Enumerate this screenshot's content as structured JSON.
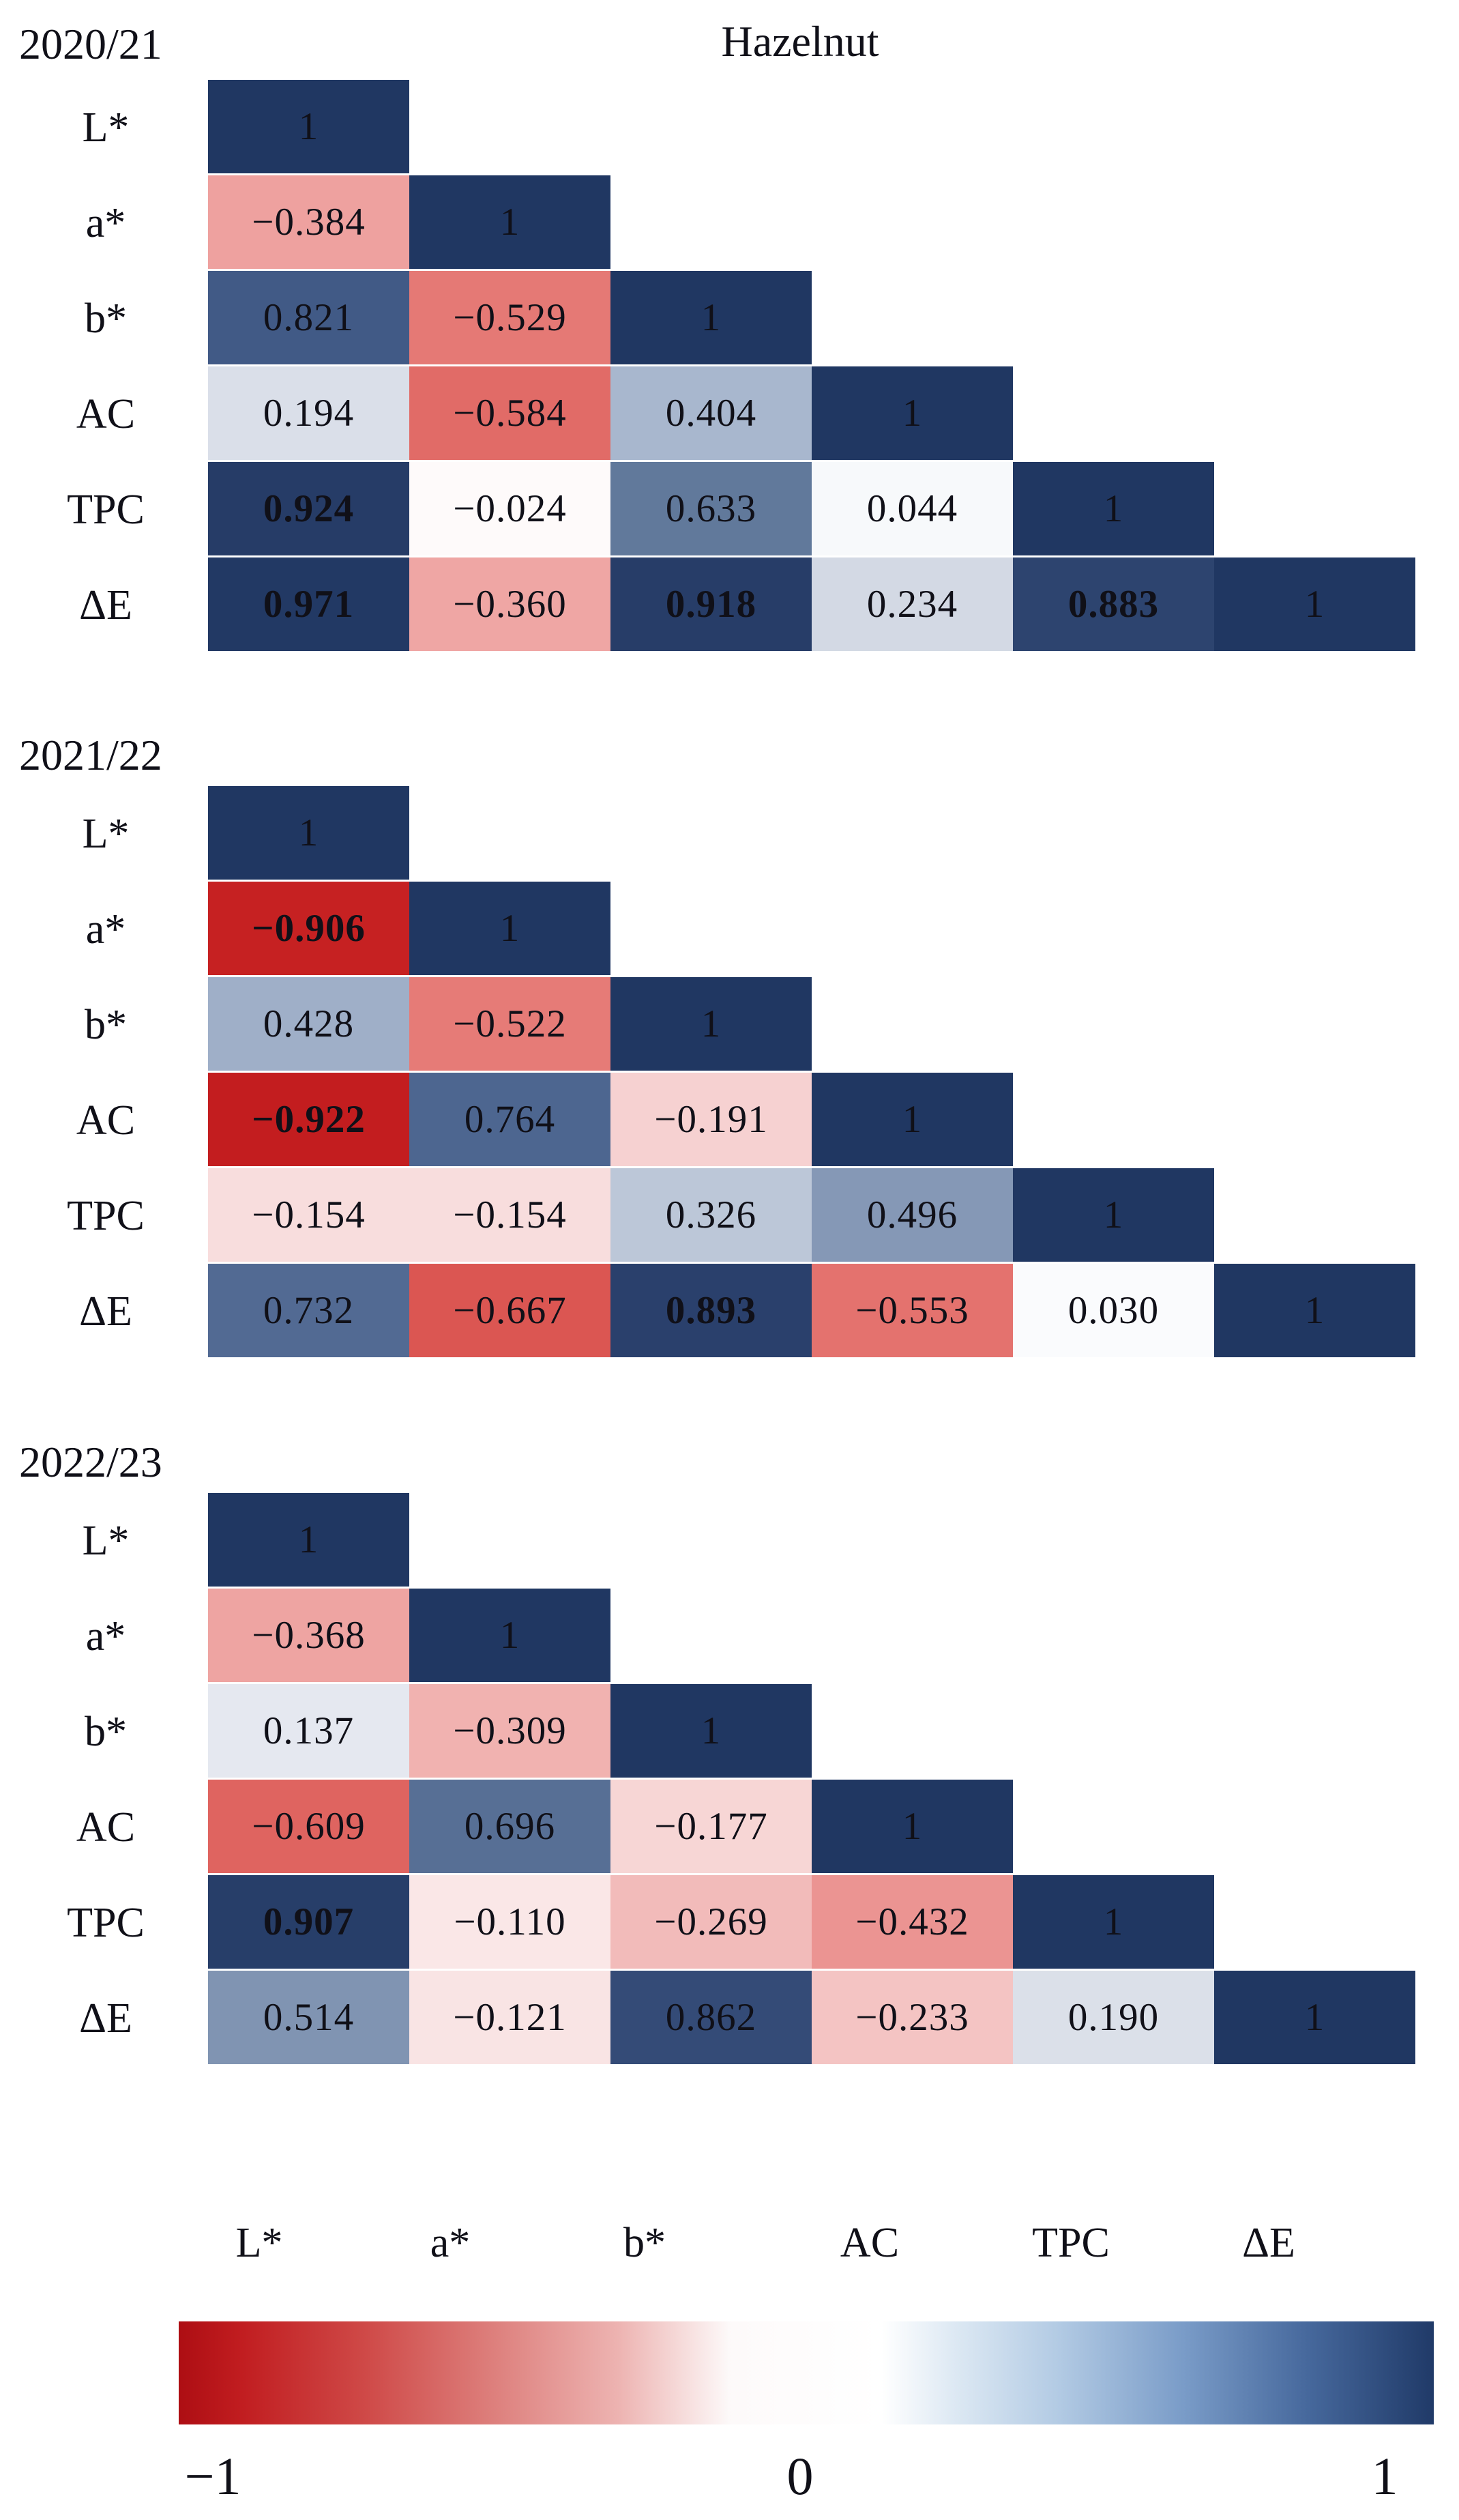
{
  "figure_title": "Hazelnut",
  "chart_data": [
    {
      "type": "heatmap",
      "subtype": "lower-triangular-correlation-matrix",
      "season": "2020/21",
      "variables": [
        "L*",
        "a*",
        "b*",
        "AC",
        "TPC",
        "ΔE"
      ],
      "matrix": [
        [
          1
        ],
        [
          -0.384,
          1
        ],
        [
          0.821,
          -0.529,
          1
        ],
        [
          0.194,
          -0.584,
          0.404,
          1
        ],
        [
          0.924,
          -0.024,
          0.633,
          0.044,
          1
        ],
        [
          0.971,
          -0.36,
          0.918,
          0.234,
          0.883,
          1
        ]
      ],
      "bold_cells": [
        [
          4,
          0
        ],
        [
          5,
          0
        ],
        [
          5,
          2
        ],
        [
          5,
          4
        ]
      ]
    },
    {
      "type": "heatmap",
      "subtype": "lower-triangular-correlation-matrix",
      "season": "2021/22",
      "variables": [
        "L*",
        "a*",
        "b*",
        "AC",
        "TPC",
        "ΔE"
      ],
      "matrix": [
        [
          1
        ],
        [
          -0.906,
          1
        ],
        [
          0.428,
          -0.522,
          1
        ],
        [
          -0.922,
          0.764,
          -0.191,
          1
        ],
        [
          -0.154,
          -0.154,
          0.326,
          0.496,
          1
        ],
        [
          0.732,
          -0.667,
          0.893,
          -0.553,
          0.03,
          1
        ]
      ],
      "bold_cells": [
        [
          1,
          0
        ],
        [
          3,
          0
        ],
        [
          5,
          2
        ]
      ]
    },
    {
      "type": "heatmap",
      "subtype": "lower-triangular-correlation-matrix",
      "season": "2022/23",
      "variables": [
        "L*",
        "a*",
        "b*",
        "AC",
        "TPC",
        "ΔE"
      ],
      "matrix": [
        [
          1
        ],
        [
          -0.368,
          1
        ],
        [
          0.137,
          -0.309,
          1
        ],
        [
          -0.609,
          0.696,
          -0.177,
          1
        ],
        [
          0.907,
          -0.11,
          -0.269,
          -0.432,
          1
        ],
        [
          0.514,
          -0.121,
          0.862,
          -0.233,
          0.19,
          1
        ]
      ],
      "bold_cells": [
        [
          4,
          0
        ]
      ]
    }
  ],
  "x_axis_labels": [
    "L*",
    "a*",
    "b*",
    "AC",
    "TPC",
    "ΔE"
  ],
  "colorbar": {
    "ticks": [
      "−1",
      "0",
      "1"
    ],
    "min": -1,
    "mid": 0,
    "max": 1,
    "gradient_stops": [
      [
        0,
        "#ad0e13"
      ],
      [
        5,
        "#c11d20"
      ],
      [
        15,
        "#cf4a48"
      ],
      [
        25,
        "#dd7f7c"
      ],
      [
        35,
        "#edb3b1"
      ],
      [
        44,
        "#fdfafa"
      ],
      [
        56,
        "#ffffff"
      ],
      [
        62,
        "#dce8f3"
      ],
      [
        70,
        "#b3cbe4"
      ],
      [
        80,
        "#7a9cc8"
      ],
      [
        90,
        "#46689c"
      ],
      [
        100,
        "#203a68"
      ]
    ]
  },
  "colormap": {
    "negative": [
      [
        0.0,
        "#ffffff"
      ],
      [
        0.05,
        "#fdf4f4"
      ],
      [
        0.15,
        "#f8dede"
      ],
      [
        0.25,
        "#f3bfbe"
      ],
      [
        0.4,
        "#ed9d9b"
      ],
      [
        0.55,
        "#e4736f"
      ],
      [
        0.7,
        "#d84e4a"
      ],
      [
        0.85,
        "#cd2d2d"
      ],
      [
        1.0,
        "#b90c10"
      ]
    ],
    "positive": [
      [
        0.0,
        "#ffffff"
      ],
      [
        0.05,
        "#f6f8fb"
      ],
      [
        0.15,
        "#e2e6ee"
      ],
      [
        0.25,
        "#d0d6e2"
      ],
      [
        0.4,
        "#a9b8cf"
      ],
      [
        0.5,
        "#8497b5"
      ],
      [
        0.65,
        "#5d7598"
      ],
      [
        0.8,
        "#48618e"
      ],
      [
        0.9,
        "#283e69"
      ],
      [
        1.0,
        "#203762"
      ]
    ]
  },
  "text_color": "#101018"
}
